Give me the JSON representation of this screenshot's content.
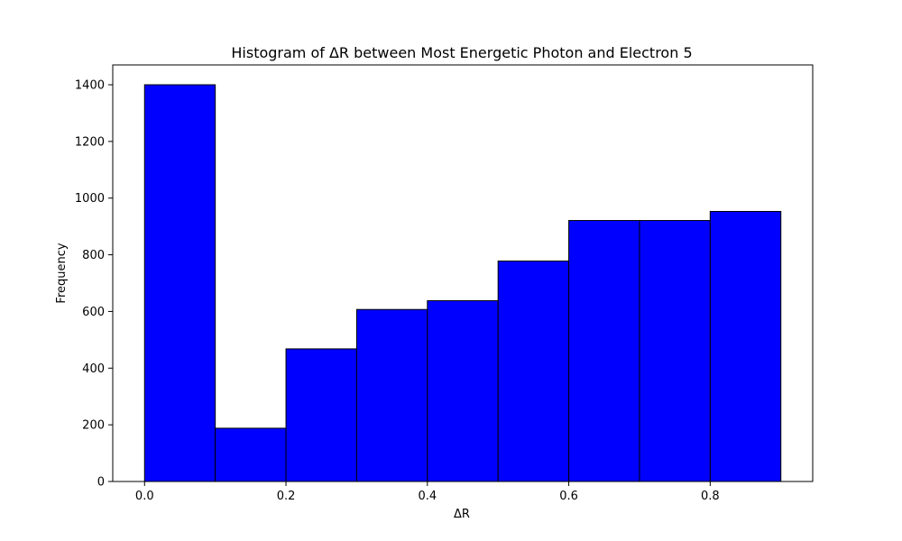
{
  "chart_data": {
    "type": "bar",
    "title": "Histogram of ΔR between Most Energetic Photon and Electron 5",
    "xlabel": "ΔR",
    "ylabel": "Frequency",
    "bin_edges": [
      0.0,
      0.1,
      0.2,
      0.3,
      0.4,
      0.5,
      0.6,
      0.7,
      0.8,
      0.9
    ],
    "values": [
      1400,
      188,
      468,
      607,
      638,
      778,
      921,
      921,
      953
    ],
    "xlim": [
      -0.045,
      0.945
    ],
    "ylim": [
      0,
      1470
    ],
    "xticks": [
      0.0,
      0.2,
      0.4,
      0.6,
      0.8
    ],
    "xtick_labels": [
      "0.0",
      "0.2",
      "0.4",
      "0.6",
      "0.8"
    ],
    "yticks": [
      0,
      200,
      400,
      600,
      800,
      1000,
      1200,
      1400
    ],
    "ytick_labels": [
      "0",
      "200",
      "400",
      "600",
      "800",
      "1000",
      "1200",
      "1400"
    ],
    "bar_color": "#0000ff",
    "edge_color": "#000000",
    "grid": false,
    "legend": false
  }
}
